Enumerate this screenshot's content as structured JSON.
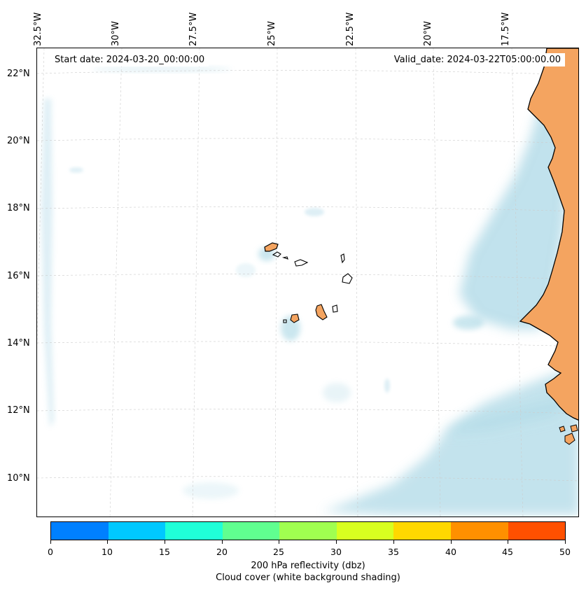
{
  "map": {
    "start_date": "Start date: 2024-03-20_00:00:00",
    "valid_date": "Valid_date: 2024-03-22T05:00:00.00",
    "lon_labels": [
      "32.5°W",
      "30°W",
      "27.5°W",
      "25°W",
      "22.5°W",
      "20°W",
      "17.5°W"
    ],
    "lat_labels": [
      "22°N",
      "20°N",
      "18°N",
      "16°N",
      "14°N",
      "12°N",
      "10°N"
    ],
    "colors": {
      "land": "#f4a460",
      "cloud": "#add8e6",
      "coastline": "#000000",
      "gridline": "#cccccc"
    }
  },
  "colorbar": {
    "ticks": [
      "0",
      "10",
      "15",
      "20",
      "25",
      "30",
      "35",
      "40",
      "45",
      "50"
    ],
    "colors": [
      "#0080ff",
      "#00c8ff",
      "#20ffd8",
      "#60ff90",
      "#a0ff50",
      "#d8ff20",
      "#ffd800",
      "#ff9000",
      "#ff5000"
    ],
    "label_line1": "200 hPa reflectivity (dbz)",
    "label_line2": "Cloud cover (white background shading)"
  }
}
